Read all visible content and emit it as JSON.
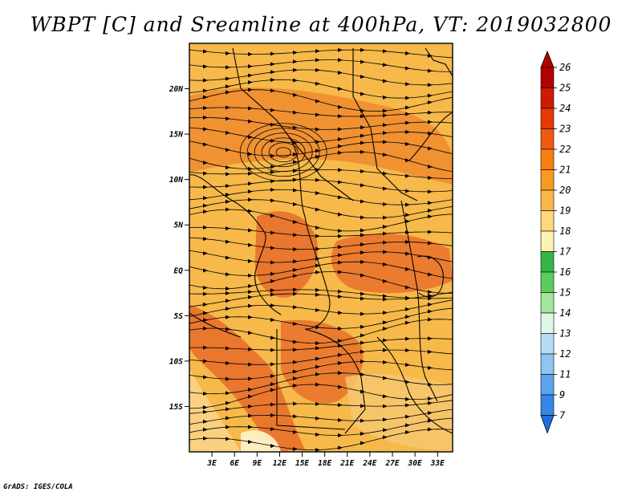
{
  "title": "WBPT [C] and Sreamline at 400hPa, VT: 2019032800",
  "credit": "GrADS: IGES/COLA",
  "map": {
    "variable": "WBPT",
    "units": "C",
    "level": "400hPa",
    "valid_time": "2019032800",
    "lon_range": [
      0,
      35
    ],
    "lat_range": [
      -20,
      25
    ],
    "lat_ticks": [
      {
        "value": 20,
        "label": "20N"
      },
      {
        "value": 15,
        "label": "15N"
      },
      {
        "value": 10,
        "label": "10N"
      },
      {
        "value": 5,
        "label": "5N"
      },
      {
        "value": 0,
        "label": "EQ"
      },
      {
        "value": -5,
        "label": "5S"
      },
      {
        "value": -10,
        "label": "10S"
      },
      {
        "value": -15,
        "label": "15S"
      }
    ],
    "lon_ticks": [
      {
        "value": 3,
        "label": "3E"
      },
      {
        "value": 6,
        "label": "6E"
      },
      {
        "value": 9,
        "label": "9E"
      },
      {
        "value": 12,
        "label": "12E"
      },
      {
        "value": 15,
        "label": "15E"
      },
      {
        "value": 18,
        "label": "18E"
      },
      {
        "value": 21,
        "label": "21E"
      },
      {
        "value": 24,
        "label": "24E"
      },
      {
        "value": 27,
        "label": "27E"
      },
      {
        "value": 30,
        "label": "30E"
      },
      {
        "value": 33,
        "label": "33E"
      }
    ],
    "field_color": "#f6b94a",
    "warm_color": "#ef8a2e",
    "hot_color": "#e8702a"
  },
  "colorbar": {
    "levels": [
      "26",
      "25",
      "24",
      "23",
      "22",
      "21",
      "20",
      "19",
      "18",
      "17",
      "16",
      "15",
      "14",
      "13",
      "12",
      "11",
      "9",
      "7"
    ],
    "colors": [
      "#b10000",
      "#cf1a00",
      "#e83a00",
      "#f05a10",
      "#f77f10",
      "#f99a20",
      "#fcb74a",
      "#fed97a",
      "#fdf3b0",
      "#35b545",
      "#5ccd5c",
      "#a4e6a0",
      "#dff6e6",
      "#b7dcf6",
      "#8fc4f3",
      "#5ba4ec",
      "#3588e6",
      "#1f6fdc"
    ]
  }
}
